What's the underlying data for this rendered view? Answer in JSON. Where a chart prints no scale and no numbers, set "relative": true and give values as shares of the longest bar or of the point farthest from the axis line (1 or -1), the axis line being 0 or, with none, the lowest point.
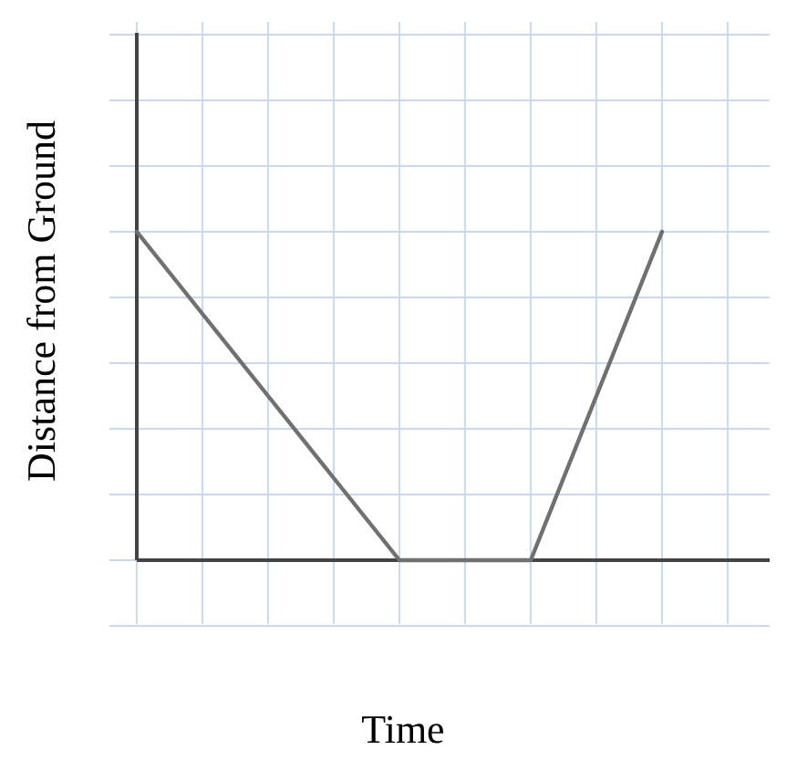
{
  "chart_data": {
    "type": "line",
    "relative": true,
    "xlabel": "Time",
    "ylabel": "Distance from Ground",
    "categories": [
      null,
      null,
      null,
      null,
      null,
      null,
      null,
      null,
      null,
      null
    ],
    "series": [
      {
        "color": "#707070",
        "values": [
          1,
          0.75,
          0.5,
          0.25,
          0,
          0,
          0,
          0.5,
          1,
          null
        ]
      }
    ],
    "grid": true,
    "marker": "none",
    "line_style": "solid"
  }
}
